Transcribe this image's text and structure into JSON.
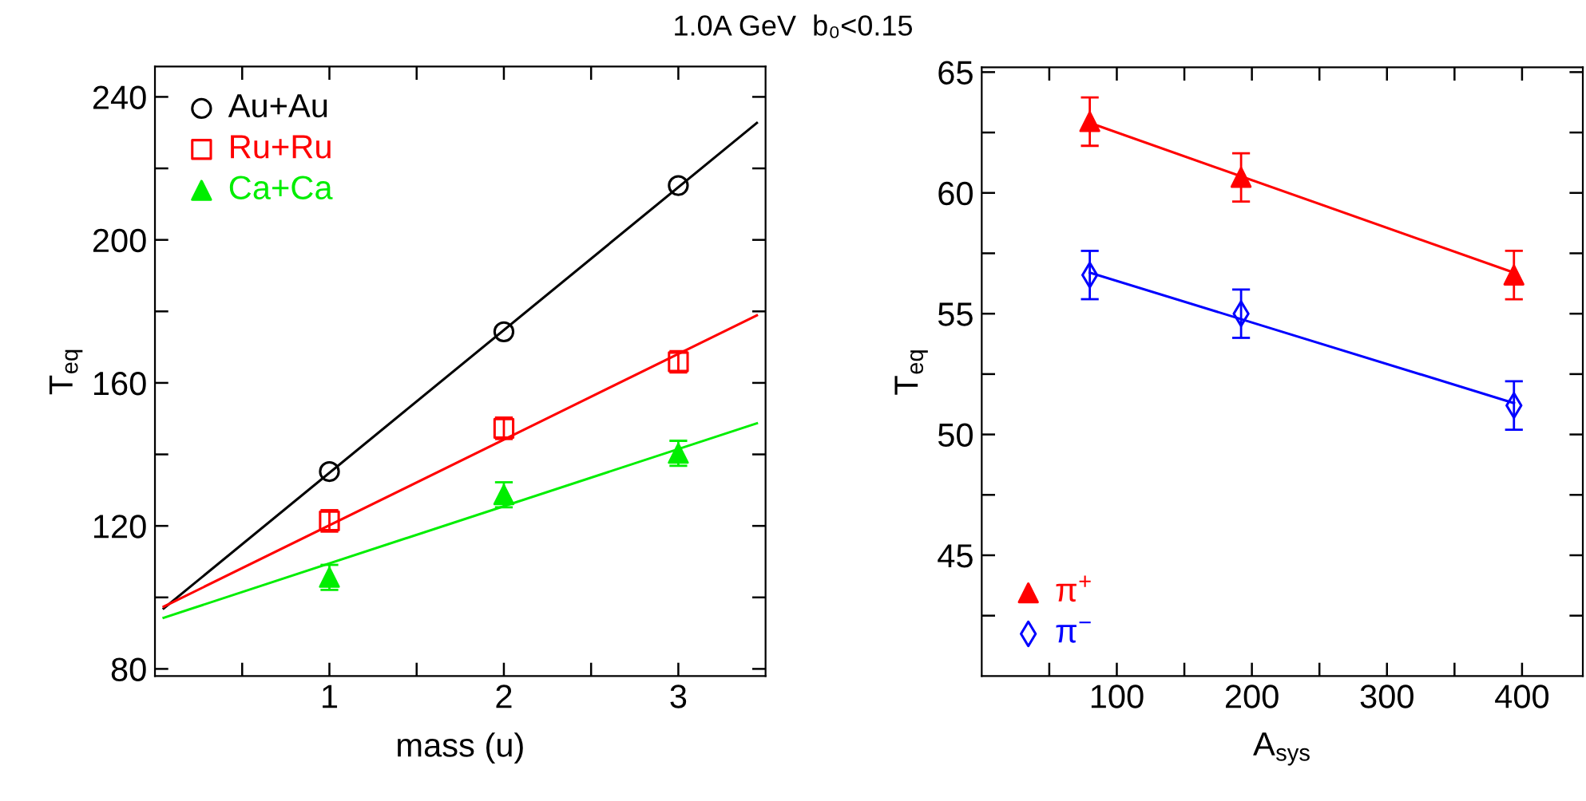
{
  "chart_data": [
    {
      "type": "scatter",
      "title": "1.0A GeV  b₀<0.15",
      "xlabel": "mass (u)",
      "ylabel": "T$_{eq}$",
      "xlim": [
        0,
        3.5
      ],
      "ylim": [
        78,
        248.5
      ],
      "xticks": [
        {
          "value": 0.5,
          "label": null
        },
        1,
        {
          "value": 1.5,
          "label": null
        },
        2,
        {
          "value": 2.5,
          "label": null
        },
        3
      ],
      "yticks": [
        80,
        {
          "value": 100,
          "label": null
        },
        120,
        {
          "value": 140,
          "label": null
        },
        160,
        {
          "value": 180,
          "label": null
        },
        200,
        {
          "value": 220,
          "label": null
        },
        240
      ],
      "legend": "top left",
      "grid": false,
      "series": [
        {
          "name": "Au+Au",
          "color": "#000000",
          "marker": "circle",
          "x": [
            1,
            2,
            3
          ],
          "values": [
            135.2,
            174.3,
            215.2
          ]
        },
        {
          "name": "Ru+Ru",
          "color": "#ff0000",
          "marker": "square",
          "x": [
            1,
            2,
            3
          ],
          "values": [
            121.4,
            147.3,
            165.9
          ],
          "errors": [
            3,
            3,
            3
          ]
        },
        {
          "name": "Ca+Ca",
          "color": "#00ee00",
          "marker": "triangle",
          "x": [
            1,
            2,
            3
          ],
          "values": [
            105.6,
            128.7,
            140.3
          ],
          "errors": [
            3.5,
            3.5,
            3.5
          ]
        },
        {
          "type": "line",
          "color": "#000000",
          "x": [
            0.05,
            3.45
          ],
          "values": [
            96.9,
            232.7
          ]
        },
        {
          "type": "line",
          "color": "#ff0000",
          "x": [
            0.05,
            3.45
          ],
          "values": [
            97.4,
            178.9
          ]
        },
        {
          "type": "line",
          "color": "#00ee00",
          "x": [
            0.05,
            3.45
          ],
          "values": [
            94.3,
            148.7
          ]
        }
      ]
    },
    {
      "type": "scatter",
      "xlabel": "A$_{sys}$",
      "ylabel": "T$_{eq}$",
      "xlim": [
        0,
        445
      ],
      "ylim": [
        40,
        65.2
      ],
      "xticks": [
        {
          "value": 50,
          "label": null
        },
        100,
        {
          "value": 150,
          "label": null
        },
        200,
        {
          "value": 250,
          "label": null
        },
        300,
        {
          "value": 350,
          "label": null
        },
        400
      ],
      "yticks": [
        {
          "value": 42.5,
          "label": null
        },
        45,
        {
          "value": 47.5,
          "label": null
        },
        50,
        {
          "value": 52.5,
          "label": null
        },
        55,
        {
          "value": 57.5,
          "label": null
        },
        60,
        {
          "value": 62.5,
          "label": null
        },
        65
      ],
      "legend": "bottom left",
      "grid": false,
      "series": [
        {
          "name": "π$^{+}$",
          "color": "#ff0000",
          "marker": "triangle",
          "x": [
            80,
            192,
            394
          ],
          "values": [
            62.95,
            60.64,
            56.6
          ],
          "errors": [
            1,
            1,
            1
          ]
        },
        {
          "name": "π$^{−}$",
          "color": "#0000ff",
          "marker": "diamond",
          "x": [
            80,
            192,
            394
          ],
          "values": [
            56.6,
            55.0,
            51.2
          ],
          "errors": [
            1,
            1,
            1
          ]
        },
        {
          "type": "line",
          "color": "#ff0000",
          "x": [
            80,
            394
          ],
          "values": [
            62.9,
            56.7
          ]
        },
        {
          "type": "line",
          "color": "#0000ff",
          "x": [
            80,
            394
          ],
          "values": [
            56.7,
            51.3
          ]
        }
      ]
    }
  ]
}
